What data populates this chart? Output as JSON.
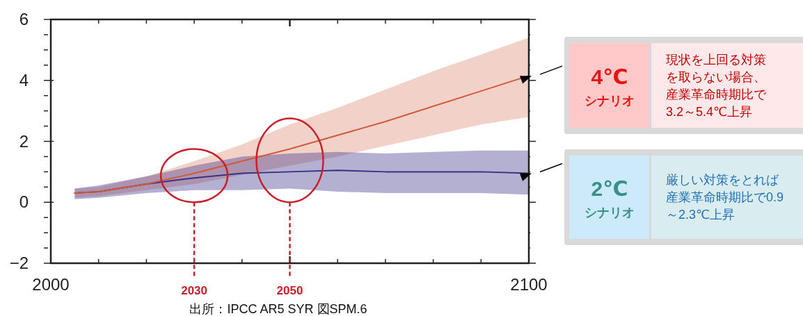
{
  "chart_data": {
    "type": "line",
    "grid": false,
    "marker": "none",
    "line_style": "solid",
    "ref_lines": [
      {
        "axis": "x",
        "value": 2030,
        "label": "2030",
        "color": "#c8202a",
        "line_style": "dashed"
      },
      {
        "axis": "x",
        "value": 2050,
        "label": "2050",
        "color": "#c8202a",
        "line_style": "dashed"
      }
    ],
    "xlim": [
      2000,
      2100
    ],
    "ylim": [
      -2,
      6
    ],
    "xticks": [
      2000,
      {
        "value": 2010,
        "label": null
      },
      {
        "value": 2020,
        "label": null
      },
      {
        "value": 2030,
        "label": null
      },
      {
        "value": 2040,
        "label": null
      },
      {
        "value": 2050,
        "label": null
      },
      {
        "value": 2060,
        "label": null
      },
      {
        "value": 2070,
        "label": null
      },
      {
        "value": 2080,
        "label": null
      },
      {
        "value": 2090,
        "label": null
      },
      2100
    ],
    "yticks": [
      -2,
      {
        "value": -1.5,
        "label": null
      },
      {
        "value": -1,
        "label": null
      },
      {
        "value": -0.5,
        "label": null
      },
      0,
      {
        "value": 0.5,
        "label": null
      },
      {
        "value": 1,
        "label": null
      },
      {
        "value": 1.5,
        "label": null
      },
      2,
      {
        "value": 2.5,
        "label": null
      },
      {
        "value": 3,
        "label": null
      },
      {
        "value": 3.5,
        "label": null
      },
      4,
      {
        "value": 4.5,
        "label": null
      },
      {
        "value": 5,
        "label": null
      },
      {
        "value": 5.5,
        "label": null
      },
      6
    ],
    "x": [
      2005,
      2010,
      2020,
      2030,
      2040,
      2050,
      2060,
      2070,
      2080,
      2090,
      2100
    ],
    "series": [
      {
        "color": "#d05a3c",
        "values": [
          0.3,
          0.35,
          0.6,
          0.95,
          1.35,
          1.75,
          2.2,
          2.65,
          3.15,
          3.65,
          4.15
        ],
        "lower": [
          0.15,
          0.2,
          0.4,
          0.6,
          0.9,
          1.2,
          1.5,
          1.85,
          2.2,
          2.55,
          2.8
        ],
        "upper": [
          0.45,
          0.5,
          0.85,
          1.35,
          1.9,
          2.55,
          3.1,
          3.7,
          4.3,
          4.85,
          5.4
        ]
      },
      {
        "color": "#3a2f85",
        "values": [
          0.3,
          0.35,
          0.6,
          0.8,
          0.95,
          1.0,
          1.05,
          1.0,
          1.0,
          1.0,
          0.95
        ],
        "lower": [
          0.1,
          0.15,
          0.3,
          0.4,
          0.4,
          0.45,
          0.35,
          0.3,
          0.3,
          0.3,
          0.25
        ],
        "upper": [
          0.45,
          0.55,
          0.85,
          1.2,
          1.5,
          1.6,
          1.65,
          1.6,
          1.65,
          1.7,
          1.7
        ]
      }
    ],
    "annotations": [
      {
        "text": "4℃",
        "x": 2100,
        "y": 4.15
      },
      "シナリオ",
      "現状を上回る対策を取らない場合、産業革命時期比で3.2～5.4℃上昇",
      {
        "text": "2℃",
        "x": 2100,
        "y": 0.95
      },
      "シナリオ",
      "厳しい対策をとれば産業革命時期比で0.9～2.3℃上昇",
      "出所：IPCC AR5 SYR 図SPM.6"
    ]
  }
}
